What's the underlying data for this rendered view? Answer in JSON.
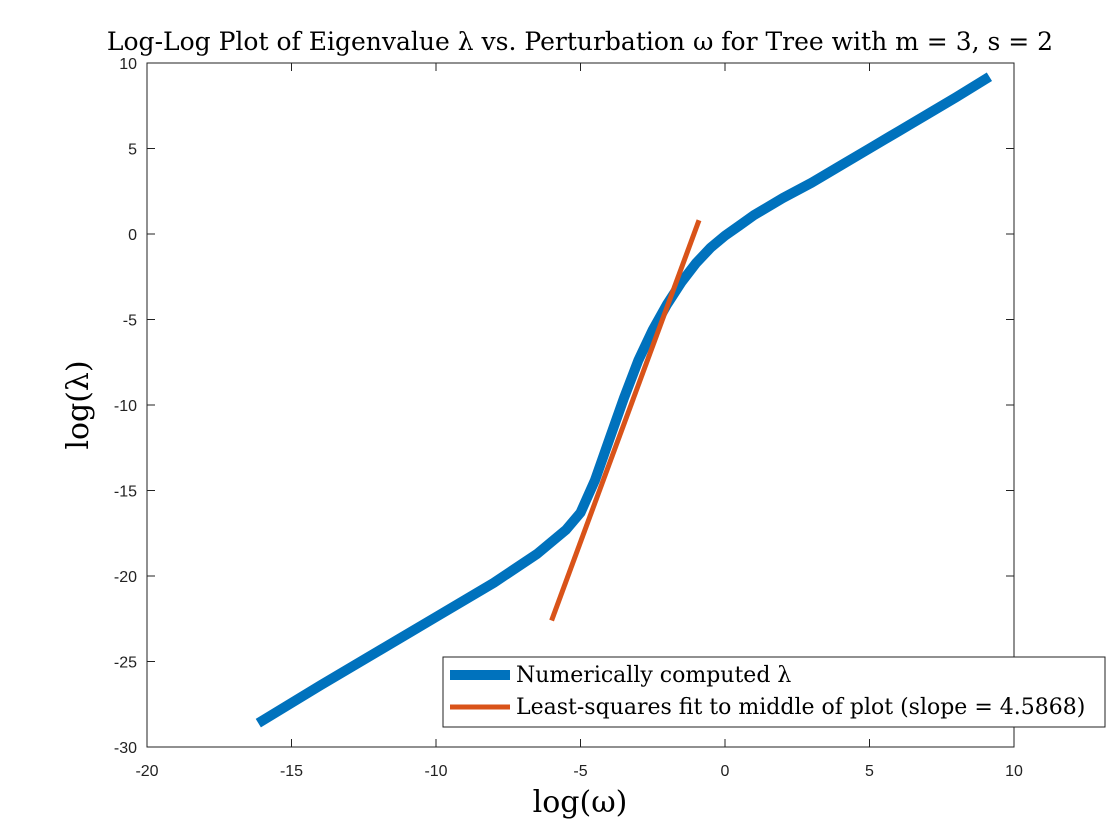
{
  "chart_data": {
    "type": "line",
    "title": "Log-Log Plot of Eigenvalue λ vs. Perturbation ω for Tree with m = 3, s = 2",
    "xlabel": "log(ω)",
    "ylabel": "log(λ)",
    "xlim": [
      -20,
      10
    ],
    "ylim": [
      -30,
      10
    ],
    "x_ticks": [
      -20,
      -15,
      -10,
      -5,
      0,
      5,
      10
    ],
    "y_ticks": [
      -30,
      -25,
      -20,
      -15,
      -10,
      -5,
      0,
      5,
      10
    ],
    "x_tick_labels": [
      "-20",
      "-15",
      "-10",
      "-5",
      "0",
      "5",
      "10"
    ],
    "y_tick_labels": [
      "-30",
      "-25",
      "-20",
      "-15",
      "-10",
      "-5",
      "0",
      "5",
      "10"
    ],
    "grid": false,
    "legend_position": "bottom-right",
    "series": [
      {
        "name": "Numerically computed λ",
        "color": "#0072BD",
        "x": [
          -16.15,
          -14,
          -12,
          -10,
          -8,
          -6.5,
          -5.5,
          -5,
          -4.5,
          -4,
          -3.5,
          -3,
          -2.5,
          -2,
          -1.5,
          -1,
          -0.5,
          0,
          0.5,
          1,
          2,
          3,
          4,
          5,
          6,
          7,
          8,
          9.15
        ],
        "y": [
          -28.6,
          -26.4,
          -24.4,
          -22.4,
          -20.4,
          -18.7,
          -17.3,
          -16.3,
          -14.4,
          -12.0,
          -9.6,
          -7.4,
          -5.6,
          -4.1,
          -2.8,
          -1.7,
          -0.8,
          -0.1,
          0.5,
          1.1,
          2.1,
          3.0,
          4.0,
          5.0,
          6.0,
          7.0,
          8.0,
          9.2
        ]
      },
      {
        "name": "Least-squares fit to middle of plot (slope = 4.5868)",
        "color": "#D95319",
        "x": [
          -6.0,
          -0.9
        ],
        "y": [
          -22.6,
          0.8
        ]
      }
    ]
  }
}
